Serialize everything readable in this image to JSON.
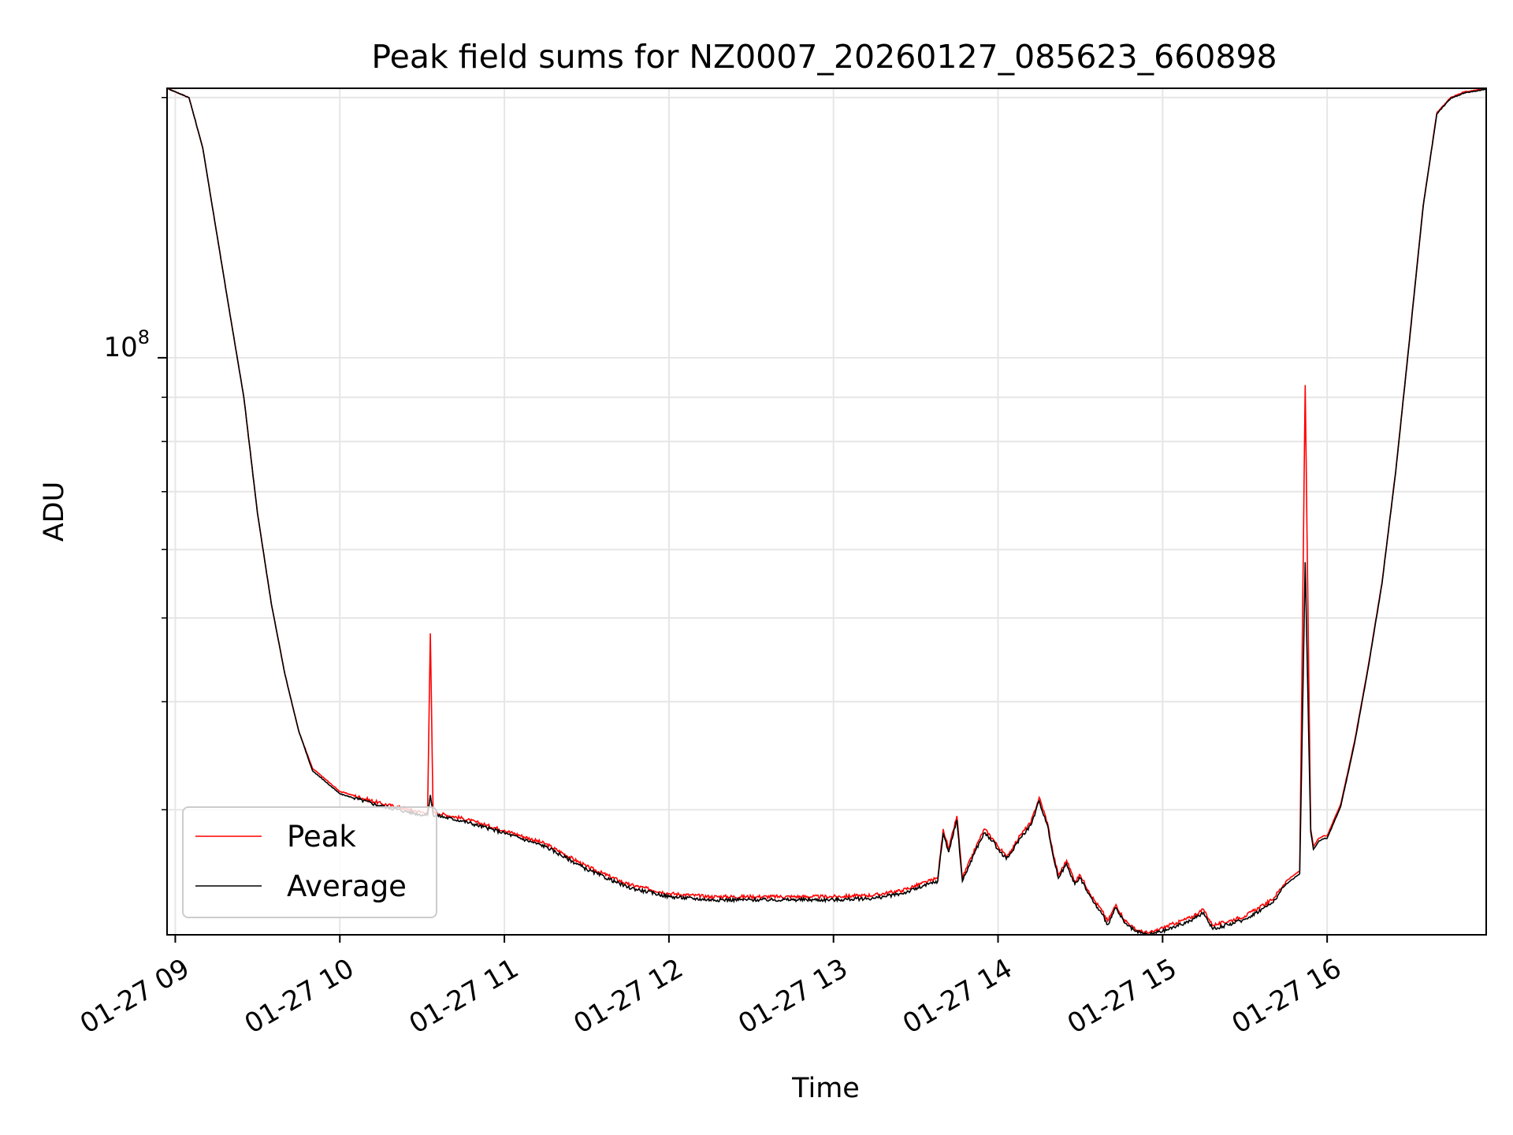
{
  "chart_data": {
    "type": "line",
    "title": "Peak field sums for NZ0007_20260127_085623_660898",
    "xlabel": "Time",
    "ylabel": "ADU",
    "y_scale": "log",
    "ylim": [
      21500000,
      205000000
    ],
    "xlim": [
      "2026-01-27 08:57",
      "2026-01-27 16:58"
    ],
    "grid": true,
    "legend_location": "lower left",
    "x_ticks": [
      "01-27 09",
      "01-27 10",
      "01-27 11",
      "01-27 12",
      "01-27 13",
      "01-27 14",
      "01-27 15",
      "01-27 16"
    ],
    "y_major_tick": {
      "label_base": "10",
      "label_exponent": "8",
      "value": 100000000
    },
    "y_minor_ticks": [
      30000000,
      40000000,
      50000000,
      60000000,
      70000000,
      80000000,
      90000000,
      200000000
    ],
    "series": [
      {
        "name": "Peak",
        "color": "#ff0000",
        "x": [
          "2026-01-27 08:57",
          "2026-01-27 09:05",
          "2026-01-27 09:10",
          "2026-01-27 09:15",
          "2026-01-27 09:20",
          "2026-01-27 09:25",
          "2026-01-27 09:30",
          "2026-01-27 09:35",
          "2026-01-27 09:40",
          "2026-01-27 09:45",
          "2026-01-27 09:50",
          "2026-01-27 10:00",
          "2026-01-27 10:15",
          "2026-01-27 10:30",
          "2026-01-27 10:32",
          "2026-01-27 10:33",
          "2026-01-27 10:34",
          "2026-01-27 10:45",
          "2026-01-27 11:00",
          "2026-01-27 11:15",
          "2026-01-27 11:30",
          "2026-01-27 11:45",
          "2026-01-27 12:00",
          "2026-01-27 12:15",
          "2026-01-27 12:30",
          "2026-01-27 12:45",
          "2026-01-27 13:00",
          "2026-01-27 13:15",
          "2026-01-27 13:25",
          "2026-01-27 13:38",
          "2026-01-27 13:40",
          "2026-01-27 13:42",
          "2026-01-27 13:45",
          "2026-01-27 13:47",
          "2026-01-27 13:52",
          "2026-01-27 13:55",
          "2026-01-27 13:58",
          "2026-01-27 14:00",
          "2026-01-27 14:03",
          "2026-01-27 14:05",
          "2026-01-27 14:08",
          "2026-01-27 14:12",
          "2026-01-27 14:15",
          "2026-01-27 14:18",
          "2026-01-27 14:20",
          "2026-01-27 14:22",
          "2026-01-27 14:25",
          "2026-01-27 14:28",
          "2026-01-27 14:30",
          "2026-01-27 14:33",
          "2026-01-27 14:35",
          "2026-01-27 14:38",
          "2026-01-27 14:40",
          "2026-01-27 14:43",
          "2026-01-27 14:46",
          "2026-01-27 14:50",
          "2026-01-27 14:52",
          "2026-01-27 14:55",
          "2026-01-27 14:57",
          "2026-01-27 15:00",
          "2026-01-27 15:05",
          "2026-01-27 15:10",
          "2026-01-27 15:15",
          "2026-01-27 15:18",
          "2026-01-27 15:20",
          "2026-01-27 15:30",
          "2026-01-27 15:40",
          "2026-01-27 15:45",
          "2026-01-27 15:50",
          "2026-01-27 15:52",
          "2026-01-27 15:54",
          "2026-01-27 15:55",
          "2026-01-27 15:57",
          "2026-01-27 15:59",
          "2026-01-27 16:00",
          "2026-01-27 16:05",
          "2026-01-27 16:10",
          "2026-01-27 16:15",
          "2026-01-27 16:20",
          "2026-01-27 16:25",
          "2026-01-27 16:30",
          "2026-01-27 16:35",
          "2026-01-27 16:40",
          "2026-01-27 16:45",
          "2026-01-27 16:50",
          "2026-01-27 16:58"
        ],
        "y": [
          205000000,
          200000000,
          175000000,
          140000000,
          112000000,
          90000000,
          66000000,
          52000000,
          43000000,
          37000000,
          33500000,
          31500000,
          30500000,
          29800000,
          29800000,
          48000000,
          29800000,
          29300000,
          28400000,
          27400000,
          25800000,
          24600000,
          24000000,
          23800000,
          23800000,
          23800000,
          23800000,
          23900000,
          24200000,
          25000000,
          28500000,
          27000000,
          29500000,
          25000000,
          27200000,
          28500000,
          27800000,
          27200000,
          26500000,
          27000000,
          28000000,
          29000000,
          31000000,
          29000000,
          26800000,
          25200000,
          26200000,
          24800000,
          25200000,
          24200000,
          23600000,
          22900000,
          22300000,
          23300000,
          22400000,
          21800000,
          21700000,
          21600000,
          21700000,
          21900000,
          22200000,
          22500000,
          23000000,
          22100000,
          22100000,
          22600000,
          23600000,
          24800000,
          25500000,
          93000000,
          28500000,
          27200000,
          27800000,
          28000000,
          28000000,
          30500000,
          36000000,
          44000000,
          55000000,
          74000000,
          105000000,
          150000000,
          192000000,
          200000000,
          203000000,
          205000000
        ]
      },
      {
        "name": "Average",
        "color": "#000000",
        "x": [
          "2026-01-27 08:57",
          "2026-01-27 09:05",
          "2026-01-27 09:10",
          "2026-01-27 09:15",
          "2026-01-27 09:20",
          "2026-01-27 09:25",
          "2026-01-27 09:30",
          "2026-01-27 09:35",
          "2026-01-27 09:40",
          "2026-01-27 09:45",
          "2026-01-27 09:50",
          "2026-01-27 10:00",
          "2026-01-27 10:15",
          "2026-01-27 10:30",
          "2026-01-27 10:32",
          "2026-01-27 10:33",
          "2026-01-27 10:34",
          "2026-01-27 10:45",
          "2026-01-27 11:00",
          "2026-01-27 11:15",
          "2026-01-27 11:30",
          "2026-01-27 11:45",
          "2026-01-27 12:00",
          "2026-01-27 12:15",
          "2026-01-27 12:30",
          "2026-01-27 12:45",
          "2026-01-27 13:00",
          "2026-01-27 13:15",
          "2026-01-27 13:25",
          "2026-01-27 13:38",
          "2026-01-27 13:40",
          "2026-01-27 13:42",
          "2026-01-27 13:45",
          "2026-01-27 13:47",
          "2026-01-27 13:52",
          "2026-01-27 13:55",
          "2026-01-27 13:58",
          "2026-01-27 14:00",
          "2026-01-27 14:03",
          "2026-01-27 14:05",
          "2026-01-27 14:08",
          "2026-01-27 14:12",
          "2026-01-27 14:15",
          "2026-01-27 14:18",
          "2026-01-27 14:20",
          "2026-01-27 14:22",
          "2026-01-27 14:25",
          "2026-01-27 14:28",
          "2026-01-27 14:30",
          "2026-01-27 14:33",
          "2026-01-27 14:35",
          "2026-01-27 14:38",
          "2026-01-27 14:40",
          "2026-01-27 14:43",
          "2026-01-27 14:46",
          "2026-01-27 14:50",
          "2026-01-27 14:52",
          "2026-01-27 14:55",
          "2026-01-27 14:57",
          "2026-01-27 15:00",
          "2026-01-27 15:05",
          "2026-01-27 15:10",
          "2026-01-27 15:15",
          "2026-01-27 15:18",
          "2026-01-27 15:20",
          "2026-01-27 15:30",
          "2026-01-27 15:40",
          "2026-01-27 15:45",
          "2026-01-27 15:50",
          "2026-01-27 15:52",
          "2026-01-27 15:54",
          "2026-01-27 15:55",
          "2026-01-27 15:57",
          "2026-01-27 15:59",
          "2026-01-27 16:00",
          "2026-01-27 16:05",
          "2026-01-27 16:10",
          "2026-01-27 16:15",
          "2026-01-27 16:20",
          "2026-01-27 16:25",
          "2026-01-27 16:30",
          "2026-01-27 16:35",
          "2026-01-27 16:40",
          "2026-01-27 16:45",
          "2026-01-27 16:50",
          "2026-01-27 16:58"
        ],
        "y": [
          205000000,
          200000000,
          175000000,
          140000000,
          112000000,
          90000000,
          66000000,
          52000000,
          43000000,
          37000000,
          33300000,
          31300000,
          30300000,
          29600000,
          29600000,
          31200000,
          29600000,
          29100000,
          28200000,
          27200000,
          25600000,
          24400000,
          23800000,
          23600000,
          23600000,
          23600000,
          23600000,
          23700000,
          24000000,
          24800000,
          28200000,
          26800000,
          29200000,
          24800000,
          27000000,
          28200000,
          27600000,
          27000000,
          26300000,
          26800000,
          27800000,
          28800000,
          30700000,
          28800000,
          26600000,
          25000000,
          26000000,
          24600000,
          25000000,
          24000000,
          23400000,
          22700000,
          22100000,
          23100000,
          22200000,
          21700000,
          21600000,
          21500000,
          21600000,
          21700000,
          22000000,
          22300000,
          22800000,
          21900000,
          21900000,
          22400000,
          23400000,
          24600000,
          25300000,
          58000000,
          28300000,
          27000000,
          27600000,
          27800000,
          27800000,
          30300000,
          35800000,
          43800000,
          54800000,
          73800000,
          104500000,
          149500000,
          191500000,
          199500000,
          202500000,
          204500000
        ]
      }
    ]
  }
}
